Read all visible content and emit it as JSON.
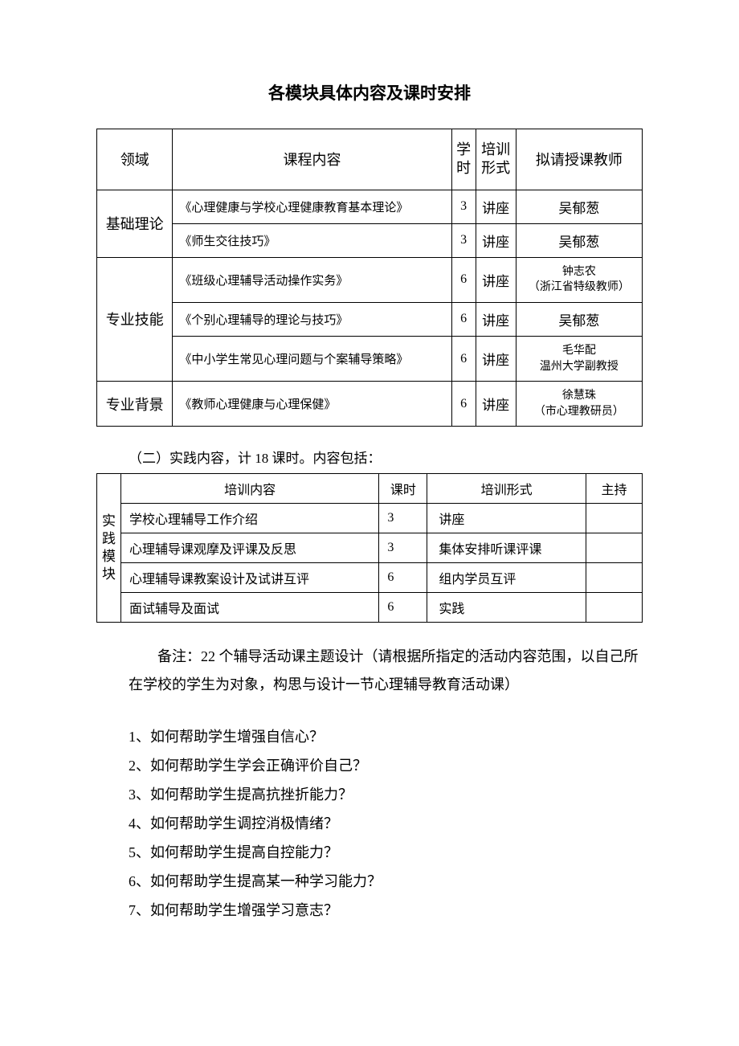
{
  "title": "各模块具体内容及课时安排",
  "table1": {
    "headers": {
      "domain": "领域",
      "content": "课程内容",
      "hours": "学时",
      "format": "培训形式",
      "teacher": "拟请授课教师"
    },
    "groups": [
      {
        "domain": "基础理论",
        "rows": [
          {
            "content": "《心理健康与学校心理健康教育基本理论》",
            "hours": "3",
            "format": "讲座",
            "teacher": "吴郁葱"
          },
          {
            "content": "《师生交往技巧》",
            "hours": "3",
            "format": "讲座",
            "teacher": "吴郁葱"
          }
        ]
      },
      {
        "domain": "专业技能",
        "rows": [
          {
            "content": "《班级心理辅导活动操作实务》",
            "hours": "6",
            "format": "讲座",
            "teacher": "钟志农\n（浙江省特级教师）"
          },
          {
            "content": "《个别心理辅导的理论与技巧》",
            "hours": "6",
            "format": "讲座",
            "teacher": "吴郁葱"
          },
          {
            "content": "《中小学生常见心理问题与个案辅导策略》",
            "hours": "6",
            "format": "讲座",
            "teacher": "毛华配\n温州大学副教授"
          }
        ]
      },
      {
        "domain": "专业背景",
        "rows": [
          {
            "content": "《教师心理健康与心理保健》",
            "hours": "6",
            "format": "讲座",
            "teacher": "徐慧珠\n（市心理教研员）"
          }
        ]
      }
    ]
  },
  "section2_intro": "（二）实践内容，计 18 课时。内容包括：",
  "table2": {
    "sidelabel": "实践模块",
    "headers": {
      "content": "培训内容",
      "hours": "课时",
      "format": "培训形式",
      "host": "主持"
    },
    "rows": [
      {
        "content": "学校心理辅导工作介绍",
        "hours": "3",
        "format": "讲座",
        "host": ""
      },
      {
        "content": "心理辅导课观摩及评课及反思",
        "hours": "3",
        "format": "集体安排听课评课",
        "host": ""
      },
      {
        "content": "心理辅导课教案设计及试讲互评",
        "hours": "6",
        "format": "组内学员互评",
        "host": ""
      },
      {
        "content": "面试辅导及面试",
        "hours": "6",
        "format": "实践",
        "host": ""
      }
    ]
  },
  "note": "备注：22 个辅导活动课主题设计（请根据所指定的活动内容范围，以自己所在学校的学生为对象，构思与设计一节心理辅导教育活动课）",
  "questions": [
    "1、如何帮助学生增强自信心？",
    "2、如何帮助学生学会正确评价自己？",
    "3、如何帮助学生提高抗挫折能力？",
    "4、如何帮助学生调控消极情绪？",
    "5、如何帮助学生提高自控能力？",
    "6、如何帮助学生提高某一种学习能力？",
    "7、如何帮助学生增强学习意志？"
  ]
}
